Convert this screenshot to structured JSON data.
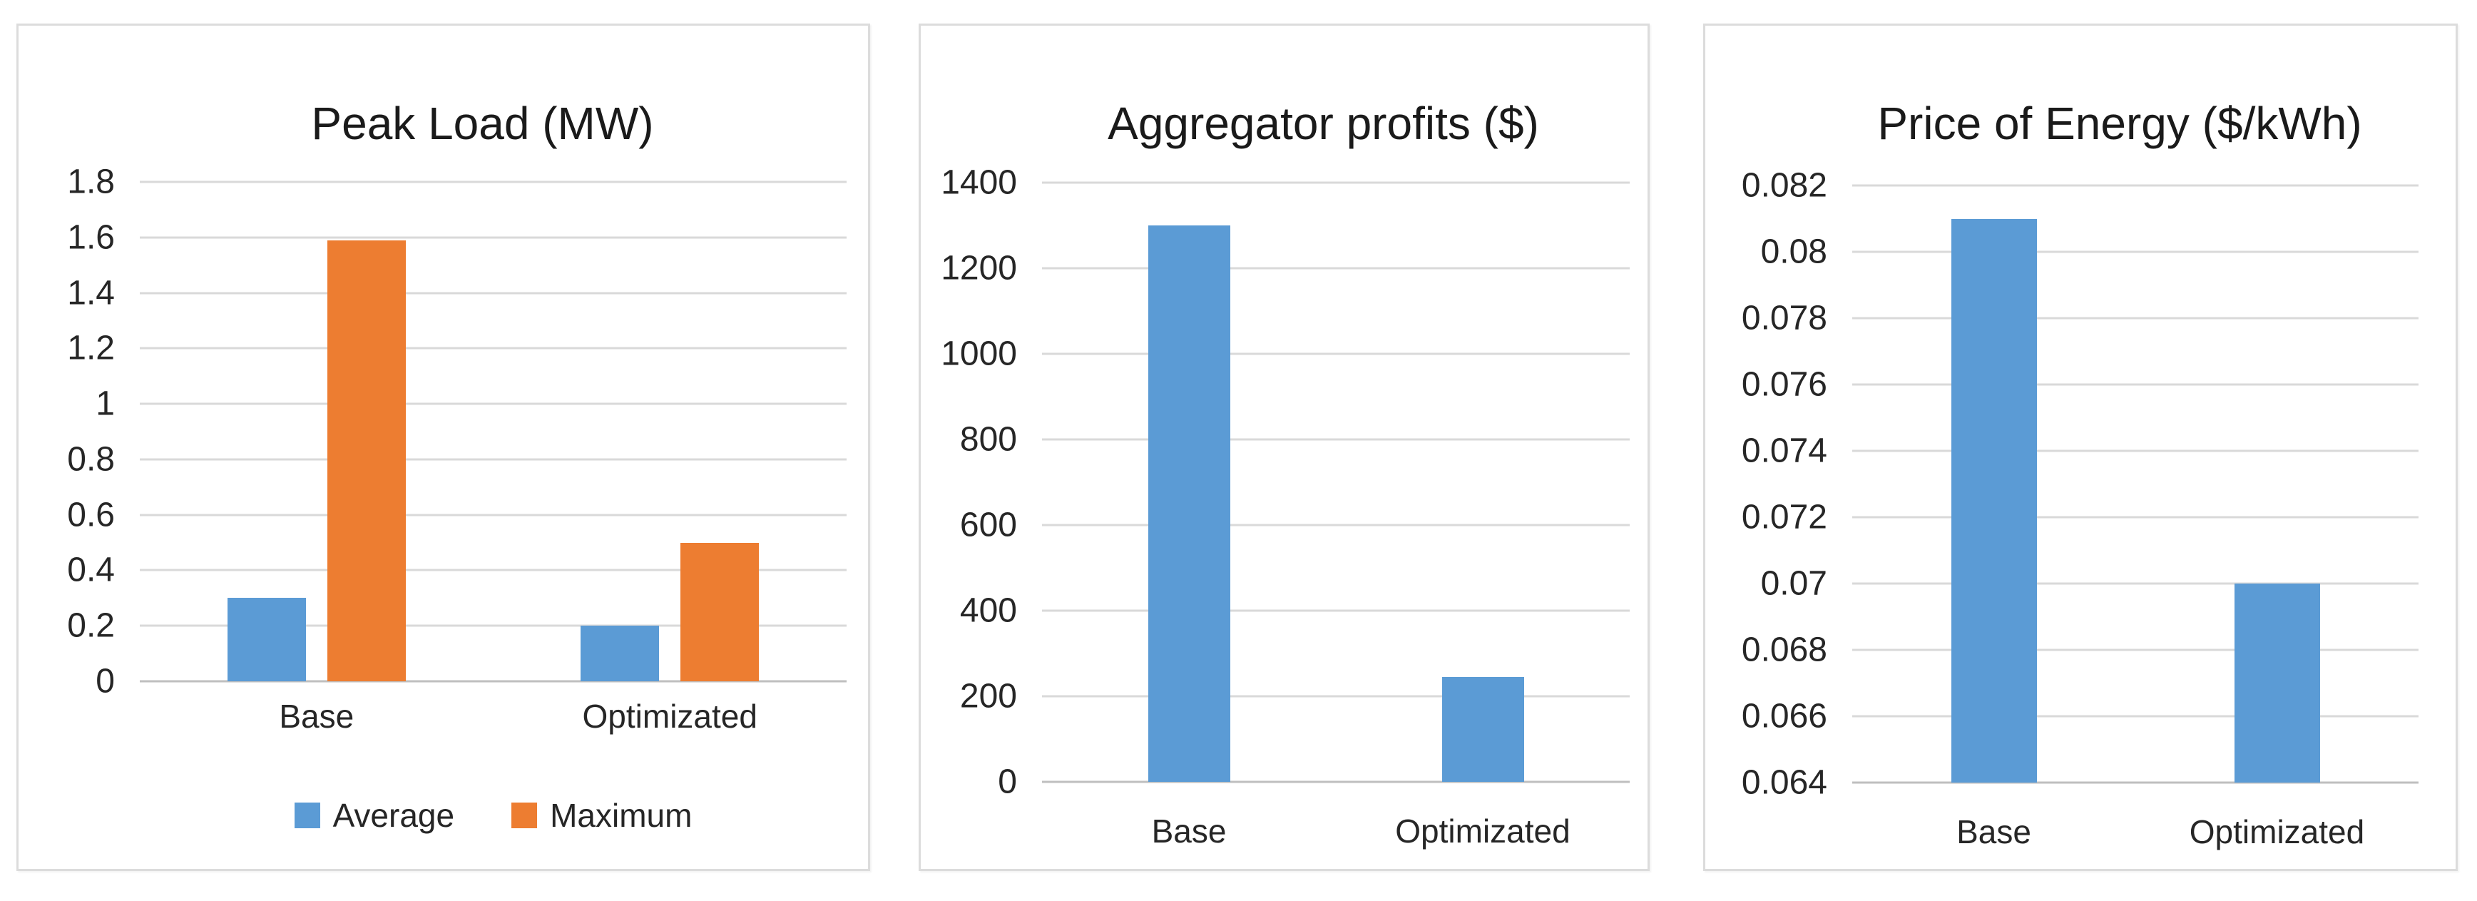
{
  "page": {
    "background": "#ffffff"
  },
  "colors": {
    "series_blue": "#5B9BD5",
    "series_orange": "#ED7D31",
    "gridline": "#D9D9D9",
    "axis_baseline": "#BFBFBF",
    "text": "#262626"
  },
  "chart_data": [
    {
      "type": "bar",
      "title": "Peak Load (MW)",
      "categories": [
        "Base",
        "Optimizated"
      ],
      "series": [
        {
          "name": "Average",
          "color": "#5B9BD5",
          "values": [
            0.3,
            0.2
          ]
        },
        {
          "name": "Maximum",
          "color": "#ED7D31",
          "values": [
            1.59,
            0.5
          ]
        }
      ],
      "ylim": [
        0,
        1.8
      ],
      "yticks": [
        "1.8",
        "1.6",
        "1.4",
        "1.2",
        "1",
        "0.8",
        "0.6",
        "0.4",
        "0.2",
        "0"
      ],
      "grid": true,
      "show_legend": true,
      "legend_position": "bottom",
      "legend": [
        "Average",
        "Maximum"
      ]
    },
    {
      "type": "bar",
      "title": "Aggregator profits ($)",
      "categories": [
        "Base",
        "Optimizated"
      ],
      "series": [
        {
          "name": "",
          "color": "#5B9BD5",
          "values": [
            1300,
            245
          ]
        }
      ],
      "ylim": [
        0,
        1400
      ],
      "yticks": [
        "1400",
        "1200",
        "1000",
        "800",
        "600",
        "400",
        "200",
        "0"
      ],
      "grid": true,
      "show_legend": false
    },
    {
      "type": "bar",
      "title": "Price of Energy ($/kWh)",
      "categories": [
        "Base",
        "Optimizated"
      ],
      "series": [
        {
          "name": "",
          "color": "#5B9BD5",
          "values": [
            0.081,
            0.07
          ]
        }
      ],
      "ylim": [
        0.064,
        0.082
      ],
      "yticks": [
        "0.082",
        "0.08",
        "0.078",
        "0.076",
        "0.074",
        "0.072",
        "0.07",
        "0.068",
        "0.066",
        "0.064"
      ],
      "grid": true,
      "show_legend": false
    }
  ]
}
